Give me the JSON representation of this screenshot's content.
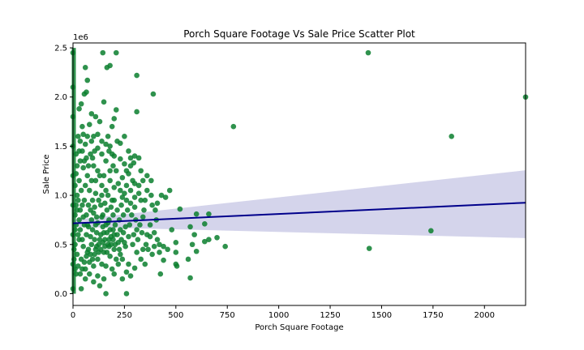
{
  "chart_data": {
    "type": "scatter",
    "title": "Porch Square Footage Vs Sale Price Scatter Plot",
    "xlabel": "Porch Square Footage",
    "ylabel": "Sale Price",
    "y_offset_text": "1e6",
    "xlim": [
      0,
      2200
    ],
    "ylim": [
      -0.12,
      2.55
    ],
    "xticks": [
      0,
      250,
      500,
      750,
      1000,
      1250,
      1500,
      1750,
      2000
    ],
    "xtick_labels": [
      "0",
      "250",
      "500",
      "750",
      "1000",
      "1250",
      "1500",
      "1750",
      "2000"
    ],
    "yticks": [
      0.0,
      0.5,
      1.0,
      1.5,
      2.0,
      2.5
    ],
    "ytick_labels": [
      "0.0",
      "0.5",
      "1.0",
      "1.5",
      "2.0",
      "2.5"
    ],
    "grid": false,
    "point_color": "#0a7f2e",
    "regression": {
      "color": "#00008b",
      "band_color": "#c9c9e6",
      "x": [
        0,
        2200
      ],
      "y": [
        0.715,
        0.925
      ],
      "band_lower": [
        0.68,
        0.565
      ],
      "band_upper": [
        0.75,
        1.255
      ]
    },
    "points": [
      [
        0,
        0.05
      ],
      [
        0,
        0.3
      ],
      [
        0,
        0.6
      ],
      [
        0,
        0.9
      ],
      [
        0,
        1.2
      ],
      [
        0,
        1.5
      ],
      [
        0,
        1.8
      ],
      [
        0,
        2.1
      ],
      [
        0,
        2.45
      ],
      [
        1435,
        2.45
      ],
      [
        2200,
        2.0
      ],
      [
        1840,
        1.6
      ],
      [
        780,
        1.7
      ],
      [
        1740,
        0.64
      ],
      [
        1440,
        0.46
      ],
      [
        145,
        2.45
      ],
      [
        210,
        2.45
      ],
      [
        165,
        2.3
      ],
      [
        180,
        2.32
      ],
      [
        60,
        2.3
      ],
      [
        310,
        2.22
      ],
      [
        70,
        2.17
      ],
      [
        390,
        2.03
      ],
      [
        55,
        2.03
      ],
      [
        65,
        2.05
      ],
      [
        150,
        1.95
      ],
      [
        310,
        1.85
      ],
      [
        40,
        1.93
      ],
      [
        210,
        1.87
      ],
      [
        90,
        1.83
      ],
      [
        740,
        0.48
      ],
      [
        560,
        0.35
      ],
      [
        570,
        0.16
      ],
      [
        520,
        0.86
      ],
      [
        600,
        0.81
      ],
      [
        660,
        0.81
      ],
      [
        640,
        0.53
      ],
      [
        640,
        0.71
      ],
      [
        660,
        0.55
      ],
      [
        590,
        0.6
      ],
      [
        580,
        0.5
      ],
      [
        600,
        0.43
      ],
      [
        570,
        0.68
      ],
      [
        700,
        0.57
      ],
      [
        430,
        1.0
      ],
      [
        450,
        0.98
      ],
      [
        470,
        1.05
      ],
      [
        500,
        0.3
      ],
      [
        505,
        0.28
      ],
      [
        440,
        0.34
      ],
      [
        420,
        0.42
      ],
      [
        425,
        0.2
      ],
      [
        500,
        0.52
      ],
      [
        500,
        0.42
      ],
      [
        460,
        0.45
      ],
      [
        480,
        0.65
      ],
      [
        380,
        1.0
      ],
      [
        380,
        1.15
      ],
      [
        360,
        1.2
      ],
      [
        330,
        1.25
      ],
      [
        320,
        1.38
      ],
      [
        300,
        1.4
      ],
      [
        295,
        1.33
      ],
      [
        270,
        1.45
      ],
      [
        280,
        1.38
      ],
      [
        250,
        1.6
      ],
      [
        230,
        1.53
      ],
      [
        260,
        1.25
      ],
      [
        230,
        1.37
      ],
      [
        200,
        1.78
      ],
      [
        190,
        1.7
      ],
      [
        170,
        1.6
      ],
      [
        130,
        1.75
      ],
      [
        110,
        1.8
      ],
      [
        100,
        1.6
      ],
      [
        80,
        1.72
      ],
      [
        90,
        1.55
      ],
      [
        70,
        1.6
      ],
      [
        60,
        1.52
      ],
      [
        50,
        1.62
      ],
      [
        45,
        1.7
      ],
      [
        30,
        1.88
      ],
      [
        30,
        1.45
      ],
      [
        120,
        1.48
      ],
      [
        140,
        1.42
      ],
      [
        160,
        1.35
      ],
      [
        180,
        1.5
      ],
      [
        200,
        1.4
      ],
      [
        210,
        1.25
      ],
      [
        240,
        1.18
      ],
      [
        230,
        1.05
      ],
      [
        200,
        0.95
      ],
      [
        180,
        1.15
      ],
      [
        160,
        1.05
      ],
      [
        150,
        1.2
      ],
      [
        140,
        1.1
      ],
      [
        120,
        1.25
      ],
      [
        100,
        1.3
      ],
      [
        90,
        1.15
      ],
      [
        80,
        1.05
      ],
      [
        70,
        1.2
      ],
      [
        60,
        1.1
      ],
      [
        50,
        1.28
      ],
      [
        40,
        1.05
      ],
      [
        30,
        1.15
      ],
      [
        20,
        1.3
      ],
      [
        25,
        0.95
      ],
      [
        35,
        0.85
      ],
      [
        45,
        0.9
      ],
      [
        55,
        0.95
      ],
      [
        65,
        0.8
      ],
      [
        75,
        0.9
      ],
      [
        85,
        0.85
      ],
      [
        95,
        0.95
      ],
      [
        105,
        0.88
      ],
      [
        115,
        0.78
      ],
      [
        125,
        0.95
      ],
      [
        135,
        0.9
      ],
      [
        145,
        0.8
      ],
      [
        155,
        0.92
      ],
      [
        165,
        0.85
      ],
      [
        175,
        0.75
      ],
      [
        185,
        0.88
      ],
      [
        195,
        0.8
      ],
      [
        205,
        0.7
      ],
      [
        215,
        0.85
      ],
      [
        225,
        0.75
      ],
      [
        235,
        0.9
      ],
      [
        245,
        0.8
      ],
      [
        255,
        0.68
      ],
      [
        265,
        0.85
      ],
      [
        275,
        0.7
      ],
      [
        285,
        0.8
      ],
      [
        295,
        0.6
      ],
      [
        305,
        0.75
      ],
      [
        315,
        0.55
      ],
      [
        325,
        0.7
      ],
      [
        335,
        0.62
      ],
      [
        345,
        0.85
      ],
      [
        355,
        0.5
      ],
      [
        365,
        0.45
      ],
      [
        375,
        0.58
      ],
      [
        385,
        0.4
      ],
      [
        395,
        0.48
      ],
      [
        405,
        0.75
      ],
      [
        270,
        0.3
      ],
      [
        280,
        0.18
      ],
      [
        260,
        0.22
      ],
      [
        300,
        0.26
      ],
      [
        330,
        0.35
      ],
      [
        340,
        0.45
      ],
      [
        230,
        0.4
      ],
      [
        220,
        0.52
      ],
      [
        210,
        0.35
      ],
      [
        200,
        0.45
      ],
      [
        190,
        0.25
      ],
      [
        180,
        0.38
      ],
      [
        170,
        0.5
      ],
      [
        160,
        0.28
      ],
      [
        150,
        0.42
      ],
      [
        140,
        0.3
      ],
      [
        130,
        0.55
      ],
      [
        120,
        0.35
      ],
      [
        110,
        0.45
      ],
      [
        100,
        0.28
      ],
      [
        90,
        0.5
      ],
      [
        80,
        0.32
      ],
      [
        70,
        0.42
      ],
      [
        60,
        0.25
      ],
      [
        50,
        0.48
      ],
      [
        40,
        0.35
      ],
      [
        30,
        0.55
      ],
      [
        20,
        0.4
      ],
      [
        10,
        0.5
      ],
      [
        15,
        0.7
      ],
      [
        25,
        0.6
      ],
      [
        35,
        0.65
      ],
      [
        45,
        0.55
      ],
      [
        55,
        0.7
      ],
      [
        65,
        0.6
      ],
      [
        75,
        0.68
      ],
      [
        85,
        0.58
      ],
      [
        95,
        0.65
      ],
      [
        105,
        0.55
      ],
      [
        115,
        0.62
      ],
      [
        125,
        0.5
      ],
      [
        135,
        0.6
      ],
      [
        145,
        0.68
      ],
      [
        155,
        0.55
      ],
      [
        165,
        0.62
      ],
      [
        175,
        0.48
      ],
      [
        185,
        0.58
      ],
      [
        195,
        0.65
      ],
      [
        205,
        0.5
      ],
      [
        215,
        0.6
      ],
      [
        225,
        0.45
      ],
      [
        235,
        0.55
      ],
      [
        245,
        0.62
      ],
      [
        255,
        0.48
      ],
      [
        150,
        0.15
      ],
      [
        130,
        0.08
      ],
      [
        40,
        0.05
      ],
      [
        160,
        0.0
      ],
      [
        260,
        0.0
      ],
      [
        120,
        0.18
      ],
      [
        100,
        0.12
      ],
      [
        80,
        0.2
      ],
      [
        60,
        0.15
      ],
      [
        200,
        0.2
      ],
      [
        240,
        0.15
      ],
      [
        170,
        0.72
      ],
      [
        190,
        0.95
      ],
      [
        120,
        0.72
      ],
      [
        90,
        0.75
      ],
      [
        70,
        0.7
      ],
      [
        50,
        0.78
      ],
      [
        30,
        0.75
      ],
      [
        15,
        0.9
      ],
      [
        20,
        1.0
      ],
      [
        10,
        1.1
      ],
      [
        15,
        1.22
      ],
      [
        110,
        1.02
      ],
      [
        140,
        1.0
      ],
      [
        170,
        1.0
      ],
      [
        250,
        1.02
      ],
      [
        280,
        1.05
      ],
      [
        300,
        0.98
      ],
      [
        320,
        1.1
      ],
      [
        290,
        1.15
      ],
      [
        260,
        1.1
      ],
      [
        240,
        0.98
      ],
      [
        220,
        1.12
      ],
      [
        200,
        1.08
      ],
      [
        350,
        0.95
      ],
      [
        360,
        1.05
      ],
      [
        340,
        1.15
      ],
      [
        300,
        0.88
      ],
      [
        310,
        0.65
      ],
      [
        290,
        0.5
      ],
      [
        270,
        0.58
      ],
      [
        250,
        0.52
      ],
      [
        240,
        0.35
      ],
      [
        220,
        0.3
      ],
      [
        310,
        0.42
      ],
      [
        350,
        0.3
      ],
      [
        360,
        0.6
      ],
      [
        375,
        0.7
      ],
      [
        395,
        0.62
      ],
      [
        410,
        0.55
      ],
      [
        420,
        0.5
      ],
      [
        440,
        0.48
      ],
      [
        385,
        0.9
      ],
      [
        400,
        0.85
      ],
      [
        410,
        0.92
      ],
      [
        85,
        1.42
      ],
      [
        95,
        1.38
      ],
      [
        105,
        1.45
      ],
      [
        65,
        1.38
      ],
      [
        45,
        1.45
      ],
      [
        25,
        1.6
      ],
      [
        35,
        1.55
      ],
      [
        180,
        1.25
      ],
      [
        195,
        1.3
      ],
      [
        120,
        1.62
      ],
      [
        140,
        1.55
      ],
      [
        160,
        1.52
      ],
      [
        175,
        1.45
      ],
      [
        110,
        1.15
      ],
      [
        130,
        1.2
      ],
      [
        75,
        1.3
      ],
      [
        55,
        1.35
      ],
      [
        35,
        1.35
      ],
      [
        15,
        1.42
      ],
      [
        280,
        1.3
      ],
      [
        270,
        1.22
      ],
      [
        250,
        1.32
      ],
      [
        215,
        1.55
      ],
      [
        190,
        1.42
      ],
      [
        300,
        1.12
      ],
      [
        320,
        1.02
      ],
      [
        330,
        0.95
      ],
      [
        340,
        0.78
      ],
      [
        280,
        0.92
      ],
      [
        260,
        0.95
      ],
      [
        230,
        0.65
      ],
      [
        200,
        0.6
      ],
      [
        180,
        0.65
      ],
      [
        160,
        0.7
      ],
      [
        150,
        0.62
      ],
      [
        140,
        0.78
      ],
      [
        110,
        0.7
      ],
      [
        100,
        0.82
      ],
      [
        20,
        0.85
      ],
      [
        10,
        0.65
      ],
      [
        10,
        0.8
      ],
      [
        5,
        0.45
      ],
      [
        5,
        0.35
      ],
      [
        10,
        0.25
      ],
      [
        15,
        0.2
      ],
      [
        25,
        0.28
      ],
      [
        35,
        0.2
      ],
      [
        45,
        0.25
      ],
      [
        55,
        0.32
      ],
      [
        65,
        0.38
      ],
      [
        75,
        0.45
      ],
      [
        85,
        0.4
      ],
      [
        95,
        0.35
      ],
      [
        105,
        0.4
      ],
      [
        115,
        0.48
      ],
      [
        125,
        0.42
      ],
      [
        135,
        0.45
      ],
      [
        145,
        0.52
      ],
      [
        155,
        0.48
      ],
      [
        165,
        0.42
      ],
      [
        175,
        0.55
      ],
      [
        185,
        0.5
      ],
      [
        195,
        0.55
      ]
    ]
  }
}
